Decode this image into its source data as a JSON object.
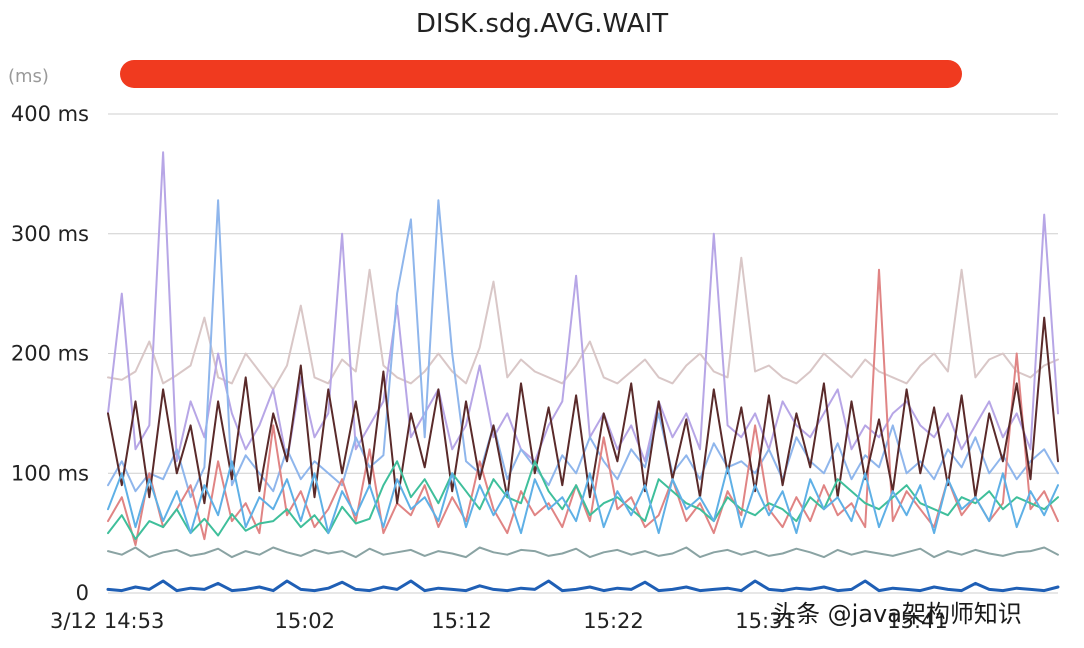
{
  "chart_data": {
    "type": "line",
    "title": "DISK.sdg.AVG.WAIT",
    "unit_label": "(ms)",
    "ylim": [
      0,
      400
    ],
    "yticks": [
      {
        "value": 0,
        "label": "0"
      },
      {
        "value": 100,
        "label": "100 ms"
      },
      {
        "value": 200,
        "label": "200 ms"
      },
      {
        "value": 300,
        "label": "300 ms"
      },
      {
        "value": 400,
        "label": "400 ms"
      }
    ],
    "x_range": [
      0,
      1000
    ],
    "xticks": [
      {
        "value": 0,
        "label": "3/12 14:53"
      },
      {
        "value": 165,
        "label": "15:02"
      },
      {
        "value": 330,
        "label": "15:12"
      },
      {
        "value": 490,
        "label": "15:22"
      },
      {
        "value": 650,
        "label": "15:31"
      },
      {
        "value": 810,
        "label": "15:41"
      }
    ],
    "grid": true,
    "legend_bar_color": "#f03a1f",
    "series": [
      {
        "color": "#d9c7c7",
        "values": [
          180,
          178,
          185,
          210,
          175,
          182,
          190,
          230,
          180,
          175,
          200,
          185,
          170,
          190,
          240,
          180,
          175,
          195,
          185,
          270,
          190,
          180,
          175,
          185,
          200,
          185,
          175,
          205,
          260,
          180,
          195,
          185,
          180,
          175,
          190,
          210,
          180,
          175,
          185,
          195,
          180,
          175,
          190,
          200,
          185,
          180,
          280,
          185,
          190,
          180,
          175,
          185,
          200,
          190,
          180,
          195,
          185,
          180,
          175,
          190,
          200,
          185,
          270,
          180,
          195,
          200,
          185,
          180,
          190,
          195
        ]
      },
      {
        "color": "#b7a6e6",
        "values": [
          150,
          250,
          120,
          140,
          368,
          110,
          160,
          130,
          200,
          150,
          120,
          140,
          170,
          110,
          180,
          130,
          150,
          300,
          120,
          140,
          160,
          240,
          130,
          150,
          170,
          120,
          140,
          190,
          130,
          150,
          120,
          110,
          140,
          160,
          265,
          130,
          150,
          120,
          140,
          110,
          160,
          130,
          150,
          120,
          300,
          140,
          130,
          150,
          120,
          160,
          140,
          130,
          150,
          170,
          120,
          140,
          130,
          150,
          160,
          140,
          130,
          150,
          120,
          140,
          160,
          130,
          150,
          120,
          316,
          150
        ]
      },
      {
        "color": "#8fb6ec",
        "values": [
          90,
          110,
          85,
          100,
          95,
          120,
          80,
          105,
          328,
          90,
          115,
          100,
          85,
          120,
          95,
          110,
          100,
          90,
          130,
          105,
          115,
          250,
          312,
          130,
          328,
          200,
          110,
          100,
          140,
          95,
          120,
          105,
          90,
          115,
          100,
          130,
          110,
          95,
          120,
          105,
          150,
          100,
          115,
          95,
          125,
          105,
          110,
          100,
          120,
          95,
          130,
          110,
          100,
          125,
          95,
          115,
          105,
          140,
          100,
          110,
          95,
          120,
          105,
          130,
          100,
          115,
          95,
          110,
          120,
          100
        ]
      },
      {
        "color": "#e08484",
        "values": [
          60,
          80,
          40,
          100,
          55,
          70,
          90,
          45,
          110,
          60,
          75,
          50,
          140,
          65,
          85,
          55,
          70,
          95,
          60,
          120,
          50,
          75,
          65,
          90,
          55,
          80,
          60,
          110,
          70,
          50,
          85,
          65,
          75,
          55,
          90,
          60,
          130,
          70,
          80,
          55,
          65,
          95,
          60,
          75,
          50,
          85,
          65,
          140,
          70,
          55,
          80,
          60,
          90,
          65,
          75,
          55,
          270,
          60,
          85,
          70,
          55,
          95,
          65,
          80,
          60,
          75,
          200,
          70,
          85,
          60
        ]
      },
      {
        "color": "#5a2a2a",
        "values": [
          150,
          90,
          160,
          80,
          170,
          100,
          140,
          75,
          160,
          95,
          180,
          85,
          150,
          110,
          190,
          80,
          170,
          100,
          160,
          90,
          185,
          75,
          150,
          105,
          170,
          85,
          160,
          95,
          140,
          80,
          175,
          100,
          155,
          90,
          165,
          80,
          150,
          110,
          175,
          85,
          160,
          95,
          145,
          80,
          170,
          100,
          155,
          85,
          165,
          90,
          150,
          105,
          175,
          80,
          160,
          95,
          145,
          85,
          170,
          100,
          155,
          90,
          165,
          80,
          150,
          110,
          175,
          95,
          230,
          110
        ]
      },
      {
        "color": "#3fbf9b",
        "values": [
          50,
          65,
          45,
          60,
          55,
          70,
          50,
          62,
          48,
          66,
          52,
          58,
          60,
          70,
          55,
          65,
          50,
          72,
          58,
          62,
          90,
          110,
          80,
          95,
          75,
          100,
          85,
          70,
          95,
          80,
          75,
          110,
          85,
          70,
          90,
          65,
          75,
          80,
          70,
          60,
          95,
          85,
          75,
          70,
          60,
          80,
          70,
          65,
          75,
          70,
          60,
          80,
          70,
          95,
          85,
          75,
          70,
          80,
          90,
          75,
          70,
          65,
          80,
          75,
          85,
          70,
          80,
          75,
          70,
          80
        ]
      },
      {
        "color": "#8aa3a3",
        "values": [
          35,
          32,
          38,
          30,
          34,
          36,
          31,
          33,
          37,
          30,
          35,
          32,
          38,
          34,
          31,
          36,
          33,
          35,
          30,
          37,
          32,
          34,
          36,
          31,
          35,
          33,
          30,
          38,
          34,
          32,
          36,
          35,
          31,
          33,
          37,
          30,
          34,
          36,
          32,
          35,
          31,
          33,
          38,
          30,
          34,
          36,
          32,
          35,
          31,
          33,
          37,
          34,
          30,
          36,
          32,
          35,
          33,
          31,
          34,
          37,
          30,
          35,
          32,
          36,
          33,
          31,
          34,
          35,
          38,
          32
        ]
      },
      {
        "color": "#5fb0e6",
        "values": [
          70,
          100,
          55,
          95,
          60,
          85,
          50,
          90,
          65,
          110,
          55,
          80,
          70,
          95,
          60,
          100,
          50,
          85,
          65,
          90,
          55,
          95,
          70,
          80,
          60,
          100,
          55,
          90,
          65,
          85,
          50,
          95,
          70,
          80,
          60,
          100,
          55,
          85,
          65,
          90,
          50,
          95,
          70,
          80,
          60,
          105,
          55,
          90,
          65,
          85,
          50,
          95,
          70,
          80,
          60,
          100,
          55,
          85,
          65,
          90,
          50,
          95,
          70,
          80,
          60,
          100,
          55,
          85,
          65,
          90
        ]
      },
      {
        "color": "#1f5fb5",
        "values": [
          3,
          2,
          5,
          3,
          10,
          2,
          4,
          3,
          8,
          2,
          3,
          5,
          2,
          10,
          3,
          2,
          4,
          9,
          3,
          2,
          5,
          3,
          10,
          2,
          4,
          3,
          2,
          6,
          3,
          2,
          4,
          3,
          10,
          2,
          3,
          5,
          2,
          4,
          3,
          9,
          2,
          3,
          5,
          2,
          3,
          4,
          2,
          10,
          3,
          2,
          4,
          3,
          5,
          2,
          3,
          10,
          2,
          4,
          3,
          2,
          5,
          3,
          2,
          8,
          3,
          2,
          4,
          3,
          2,
          5
        ]
      }
    ],
    "watermark": "头条 @java架构师知识"
  }
}
